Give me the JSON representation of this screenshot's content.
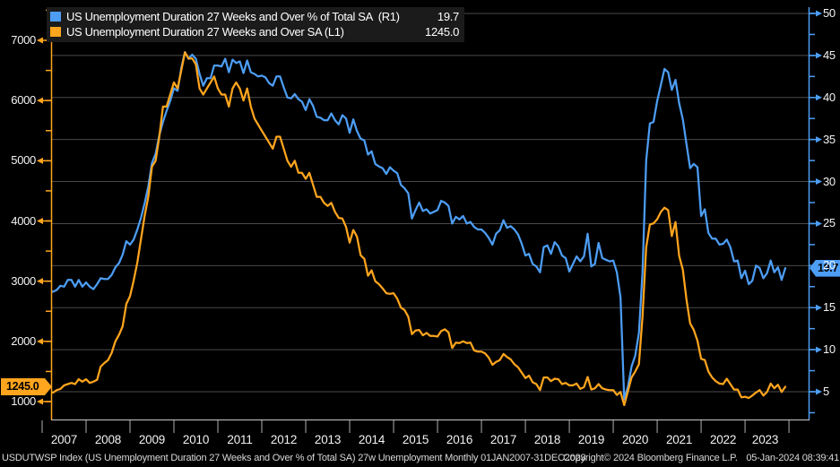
{
  "legend": {
    "series": [
      {
        "label": "US Unemployment Duration 27 Weeks and Over % of Total SA  (R1)",
        "value": "19.7"
      },
      {
        "label": "US Unemployment Duration 27 Weeks and Over SA (L1)",
        "value": "1245.0"
      }
    ]
  },
  "badges": {
    "left_value": "1245.0",
    "right_value": "19.7"
  },
  "footer": {
    "left": "USDUTWSP Index (US Unemployment Duration 27 Weeks and Over % of Total SA) 27w Unemployment  Monthly 01JAN2007-31DEC2023",
    "copyright": "Copyright© 2024 Bloomberg Finance L.P.",
    "datetime": "05-Jan-2024 08:39:41"
  },
  "colors": {
    "blue": "#4D9DF4",
    "orange": "#FFA51E",
    "grid": "#4a4a4a",
    "axis_bottom": "#c8c8c8",
    "x_tick": "#b0b0b0",
    "legend_bg": "#1b1b1b",
    "background": "#000000",
    "badge_text": "#000000"
  },
  "chart_data": {
    "type": "line",
    "title": "US Unemployment Duration 27 Weeks and Over",
    "x_years": [
      "2007",
      "2008",
      "2009",
      "2010",
      "2011",
      "2012",
      "2013",
      "2014",
      "2015",
      "2016",
      "2017",
      "2018",
      "2019",
      "2020",
      "2021",
      "2022",
      "2023"
    ],
    "x_range_months": [
      "Jan 2007",
      "Dec 2023"
    ],
    "left_axis": {
      "ticks": [
        1000,
        2000,
        3000,
        4000,
        5000,
        6000,
        7000
      ],
      "minor_step": 500,
      "range": [
        1000,
        7000
      ],
      "series": "US Unemployment Duration 27 Weeks and Over SA (L1)"
    },
    "right_axis": {
      "ticks": [
        5,
        10,
        15,
        20,
        25,
        30,
        35,
        40,
        45,
        50
      ],
      "minor_step": 2.5,
      "range": [
        5,
        50
      ],
      "series": "US Unemployment Duration 27 Weeks and Over % of Total SA (R1)"
    },
    "grid": "horizontal, at right-axis 5-unit steps",
    "legend_position": "top-left",
    "series": [
      {
        "name": "US Unemployment Duration 27 Weeks and Over % of Total SA (R1)",
        "axis": "right",
        "last_value": 19.7,
        "values": [
          17.7,
          17.1,
          16.9,
          16.9,
          17.1,
          17.6,
          17.5,
          18.3,
          18.3,
          17.5,
          18.3,
          17.5,
          18.0,
          17.5,
          17.2,
          17.8,
          18.5,
          18.4,
          18.4,
          18.9,
          19.8,
          20.3,
          21.3,
          22.9,
          22.5,
          23.1,
          24.3,
          25.7,
          27.4,
          29.4,
          32.2,
          33.3,
          35.5,
          37.1,
          38.4,
          39.6,
          41.1,
          40.8,
          43.5,
          45.4,
          44.6,
          45.1,
          44.6,
          42.8,
          41.4,
          42.3,
          42.3,
          43.8,
          43.8,
          43.7,
          44.6,
          43.0,
          44.5,
          44.1,
          44.3,
          42.9,
          44.4,
          43.0,
          42.8,
          42.5,
          42.6,
          42.4,
          41.7,
          41.4,
          42.5,
          42.5,
          41.2,
          40.0,
          39.9,
          40.4,
          39.8,
          39.5,
          38.5,
          39.8,
          39.0,
          37.7,
          37.6,
          37.3,
          37.3,
          38.1,
          37.3,
          36.8,
          37.9,
          37.5,
          35.8,
          37.4,
          36.0,
          35.1,
          34.9,
          33.2,
          33.6,
          32.1,
          31.8,
          31.6,
          30.9,
          31.7,
          31.3,
          31.0,
          29.6,
          29.2,
          28.6,
          25.6,
          26.6,
          27.5,
          26.5,
          26.7,
          26.2,
          26.4,
          26.6,
          27.7,
          27.5,
          27.1,
          25.0,
          25.8,
          25.5,
          25.9,
          25.0,
          25.2,
          24.6,
          24.3,
          24.3,
          23.9,
          23.3,
          22.5,
          23.8,
          24.2,
          25.4,
          24.5,
          24.7,
          24.3,
          23.7,
          22.6,
          21.2,
          21.4,
          20.2,
          19.9,
          19.2,
          22.2,
          22.4,
          21.4,
          22.8,
          22.3,
          21.2,
          20.9,
          19.3,
          20.2,
          21.1,
          20.5,
          21.1,
          23.8,
          19.9,
          20.2,
          22.7,
          20.9,
          20.7,
          20.5,
          20.6,
          19.2,
          16.2,
          4.1,
          5.6,
          8.0,
          9.3,
          12.0,
          19.2,
          32.5,
          36.9,
          37.1,
          39.6,
          41.5,
          43.4,
          43.0,
          40.9,
          42.1,
          39.3,
          37.4,
          34.5,
          31.6,
          32.1,
          31.7,
          25.9,
          26.7,
          23.9,
          23.2,
          23.2,
          22.5,
          22.6,
          23.1,
          22.2,
          20.5,
          20.6,
          18.5,
          19.4,
          17.8,
          18.2,
          20.0,
          19.7,
          18.5,
          19.1,
          20.6,
          19.2,
          19.8,
          18.3,
          19.7
        ]
      },
      {
        "name": "US Unemployment Duration 27 Weeks and Over SA (L1)",
        "axis": "left",
        "last_value": 1245.0,
        "values": [
          1170,
          1170,
          1160,
          1150,
          1190,
          1210,
          1270,
          1290,
          1310,
          1290,
          1370,
          1330,
          1370,
          1310,
          1330,
          1360,
          1580,
          1640,
          1690,
          1810,
          2000,
          2110,
          2250,
          2620,
          2750,
          3010,
          3310,
          3700,
          4080,
          4400,
          4900,
          5000,
          5400,
          5900,
          5900,
          6100,
          6300,
          6200,
          6500,
          6800,
          6700,
          6700,
          6600,
          6200,
          6100,
          6200,
          6300,
          6400,
          6200,
          6100,
          6100,
          5900,
          6200,
          6300,
          6200,
          6000,
          6200,
          5900,
          5700,
          5600,
          5500,
          5400,
          5300,
          5200,
          5400,
          5400,
          5200,
          5000,
          4900,
          5000,
          4800,
          4800,
          4700,
          4800,
          4600,
          4400,
          4400,
          4300,
          4250,
          4300,
          4150,
          4050,
          4040,
          3900,
          3640,
          3850,
          3740,
          3430,
          3370,
          3090,
          3180,
          3000,
          2950,
          2880,
          2800,
          2790,
          2800,
          2710,
          2560,
          2520,
          2410,
          2120,
          2180,
          2190,
          2100,
          2140,
          2090,
          2090,
          2080,
          2170,
          2200,
          2150,
          1890,
          1980,
          1970,
          2000,
          1970,
          1980,
          1850,
          1830,
          1830,
          1800,
          1730,
          1610,
          1660,
          1690,
          1790,
          1740,
          1700,
          1620,
          1570,
          1480,
          1390,
          1430,
          1320,
          1290,
          1190,
          1400,
          1400,
          1340,
          1380,
          1370,
          1290,
          1310,
          1270,
          1270,
          1300,
          1210,
          1240,
          1410,
          1200,
          1220,
          1290,
          1220,
          1200,
          1190,
          1190,
          1110,
          1160,
          940,
          1170,
          1400,
          1500,
          1620,
          2410,
          3560,
          3940,
          3960,
          4030,
          4150,
          4220,
          4180,
          3750,
          3980,
          3420,
          3190,
          2700,
          2300,
          2190,
          2010,
          1710,
          1690,
          1500,
          1400,
          1340,
          1300,
          1290,
          1380,
          1290,
          1200,
          1200,
          1070,
          1080,
          1060,
          1100,
          1150,
          1190,
          1100,
          1160,
          1300,
          1220,
          1280,
          1160,
          1245
        ]
      }
    ]
  }
}
